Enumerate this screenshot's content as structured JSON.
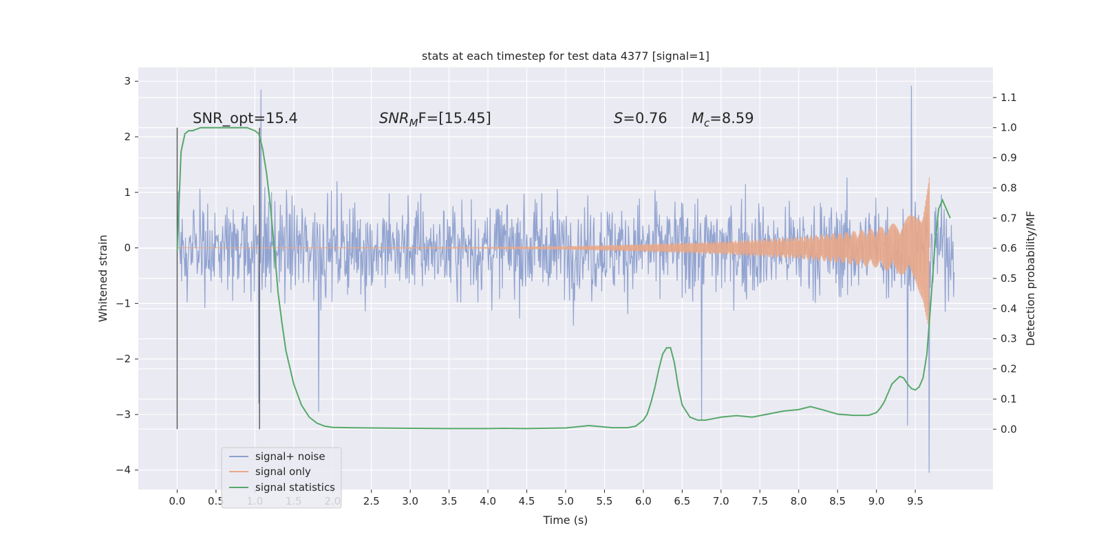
{
  "chart_data": {
    "type": "line",
    "title": "stats at each timestep for test data 4377 [signal=1]",
    "xlabel": "Time (s)",
    "ylabel": "Whitened strain",
    "ylabel_right": "Detection probability/MF",
    "xlim": [
      -0.5,
      10.5
    ],
    "ylim": [
      -4.35,
      3.25
    ],
    "ylim_right": [
      -0.2,
      1.2
    ],
    "xticks": [
      "0.0",
      "0.5",
      "1.0",
      "1.5",
      "2.0",
      "2.5",
      "3.0",
      "3.5",
      "4.0",
      "4.5",
      "5.0",
      "5.5",
      "6.0",
      "6.5",
      "7.0",
      "7.5",
      "8.0",
      "8.5",
      "9.0",
      "9.5"
    ],
    "xtick_values": [
      0.0,
      0.5,
      1.0,
      1.5,
      2.0,
      2.5,
      3.0,
      3.5,
      4.0,
      4.5,
      5.0,
      5.5,
      6.0,
      6.5,
      7.0,
      7.5,
      8.0,
      8.5,
      9.0,
      9.5
    ],
    "yticks": [
      "3",
      "2",
      "1",
      "0",
      "−1",
      "−2",
      "−3",
      "−4"
    ],
    "ytick_values": [
      3,
      2,
      1,
      0,
      -1,
      -2,
      -3,
      -4
    ],
    "yticks_right": [
      "1.1",
      "1.0",
      "0.9",
      "0.8",
      "0.7",
      "0.6",
      "0.5",
      "0.4",
      "0.3",
      "0.2",
      "0.1",
      "0.0"
    ],
    "ytick_values_right": [
      1.1,
      1.0,
      0.9,
      0.8,
      0.7,
      0.6,
      0.5,
      0.4,
      0.3,
      0.2,
      0.1,
      0.0
    ],
    "grid": true,
    "legend_position": "lower-left",
    "series": [
      {
        "name": "signal+ noise",
        "color": "#8c9fcd",
        "description_axis": "left",
        "x_range": [
          0.0,
          10.0
        ],
        "typical_band": [
          -1.5,
          1.5
        ],
        "peaks": [
          [
            1.08,
            2.85
          ],
          [
            9.45,
            2.92
          ],
          [
            9.68,
            -4.05
          ],
          [
            9.4,
            -3.2
          ],
          [
            1.82,
            -2.95
          ],
          [
            1.05,
            -2.8
          ],
          [
            6.75,
            -3.1
          ]
        ]
      },
      {
        "name": "signal only",
        "color": "#e8a788",
        "description_axis": "left",
        "x_range": [
          0.0,
          9.68
        ],
        "envelope": [
          [
            0.0,
            0.0
          ],
          [
            4.0,
            0.01
          ],
          [
            5.0,
            0.03
          ],
          [
            6.0,
            0.07
          ],
          [
            7.0,
            0.12
          ],
          [
            8.0,
            0.2
          ],
          [
            8.5,
            0.27
          ],
          [
            9.0,
            0.36
          ],
          [
            9.3,
            0.47
          ],
          [
            9.5,
            0.65
          ],
          [
            9.6,
            0.95
          ],
          [
            9.68,
            1.6
          ]
        ]
      },
      {
        "name": "signal statistics",
        "color": "#55a868",
        "description_axis": "right",
        "x": [
          0.0,
          0.05,
          0.1,
          0.15,
          0.2,
          0.3,
          0.4,
          0.5,
          0.6,
          0.7,
          0.8,
          0.9,
          1.0,
          1.05,
          1.1,
          1.15,
          1.2,
          1.25,
          1.3,
          1.35,
          1.4,
          1.5,
          1.6,
          1.7,
          1.8,
          1.9,
          2.0,
          2.2,
          2.5,
          3.0,
          3.5,
          4.0,
          4.2,
          4.5,
          5.0,
          5.3,
          5.6,
          5.8,
          5.9,
          6.0,
          6.05,
          6.1,
          6.15,
          6.2,
          6.25,
          6.3,
          6.35,
          6.4,
          6.45,
          6.5,
          6.6,
          6.7,
          6.8,
          6.9,
          7.0,
          7.2,
          7.4,
          7.6,
          7.8,
          8.0,
          8.15,
          8.3,
          8.5,
          8.7,
          8.9,
          9.0,
          9.05,
          9.1,
          9.15,
          9.2,
          9.3,
          9.35,
          9.4,
          9.45,
          9.5,
          9.55,
          9.6,
          9.65,
          9.7,
          9.75,
          9.8,
          9.85,
          9.9,
          9.95
        ],
        "values": [
          0.59,
          0.92,
          0.98,
          0.99,
          0.99,
          1.0,
          1.0,
          1.0,
          1.0,
          1.0,
          1.0,
          1.0,
          0.99,
          0.98,
          0.93,
          0.85,
          0.74,
          0.6,
          0.45,
          0.35,
          0.26,
          0.15,
          0.08,
          0.04,
          0.02,
          0.01,
          0.006,
          0.005,
          0.004,
          0.003,
          0.002,
          0.002,
          0.003,
          0.002,
          0.004,
          0.012,
          0.005,
          0.005,
          0.01,
          0.03,
          0.05,
          0.09,
          0.14,
          0.2,
          0.25,
          0.27,
          0.27,
          0.22,
          0.14,
          0.08,
          0.04,
          0.03,
          0.03,
          0.035,
          0.04,
          0.045,
          0.04,
          0.05,
          0.06,
          0.065,
          0.075,
          0.065,
          0.05,
          0.046,
          0.046,
          0.055,
          0.07,
          0.09,
          0.12,
          0.15,
          0.175,
          0.17,
          0.15,
          0.135,
          0.13,
          0.14,
          0.17,
          0.25,
          0.42,
          0.6,
          0.73,
          0.76,
          0.73,
          0.7
        ]
      }
    ],
    "vertical_lines": [
      0.0,
      1.06
    ],
    "annotations": [
      {
        "text": "SNR_opt=15.4",
        "x": 0.2,
        "y_right": 1.015
      },
      {
        "text_main": "SNR",
        "text_sub": "M",
        "text_tail": "F=[15.45]",
        "x": 2.6,
        "y_right": 1.015
      },
      {
        "text_main": "S",
        "text_tail": "=0.76",
        "x": 5.62,
        "y_right": 1.015
      },
      {
        "text_main": "M",
        "text_sub": "c",
        "text_tail": "=8.59",
        "x": 6.62,
        "y_right": 1.015
      }
    ]
  }
}
